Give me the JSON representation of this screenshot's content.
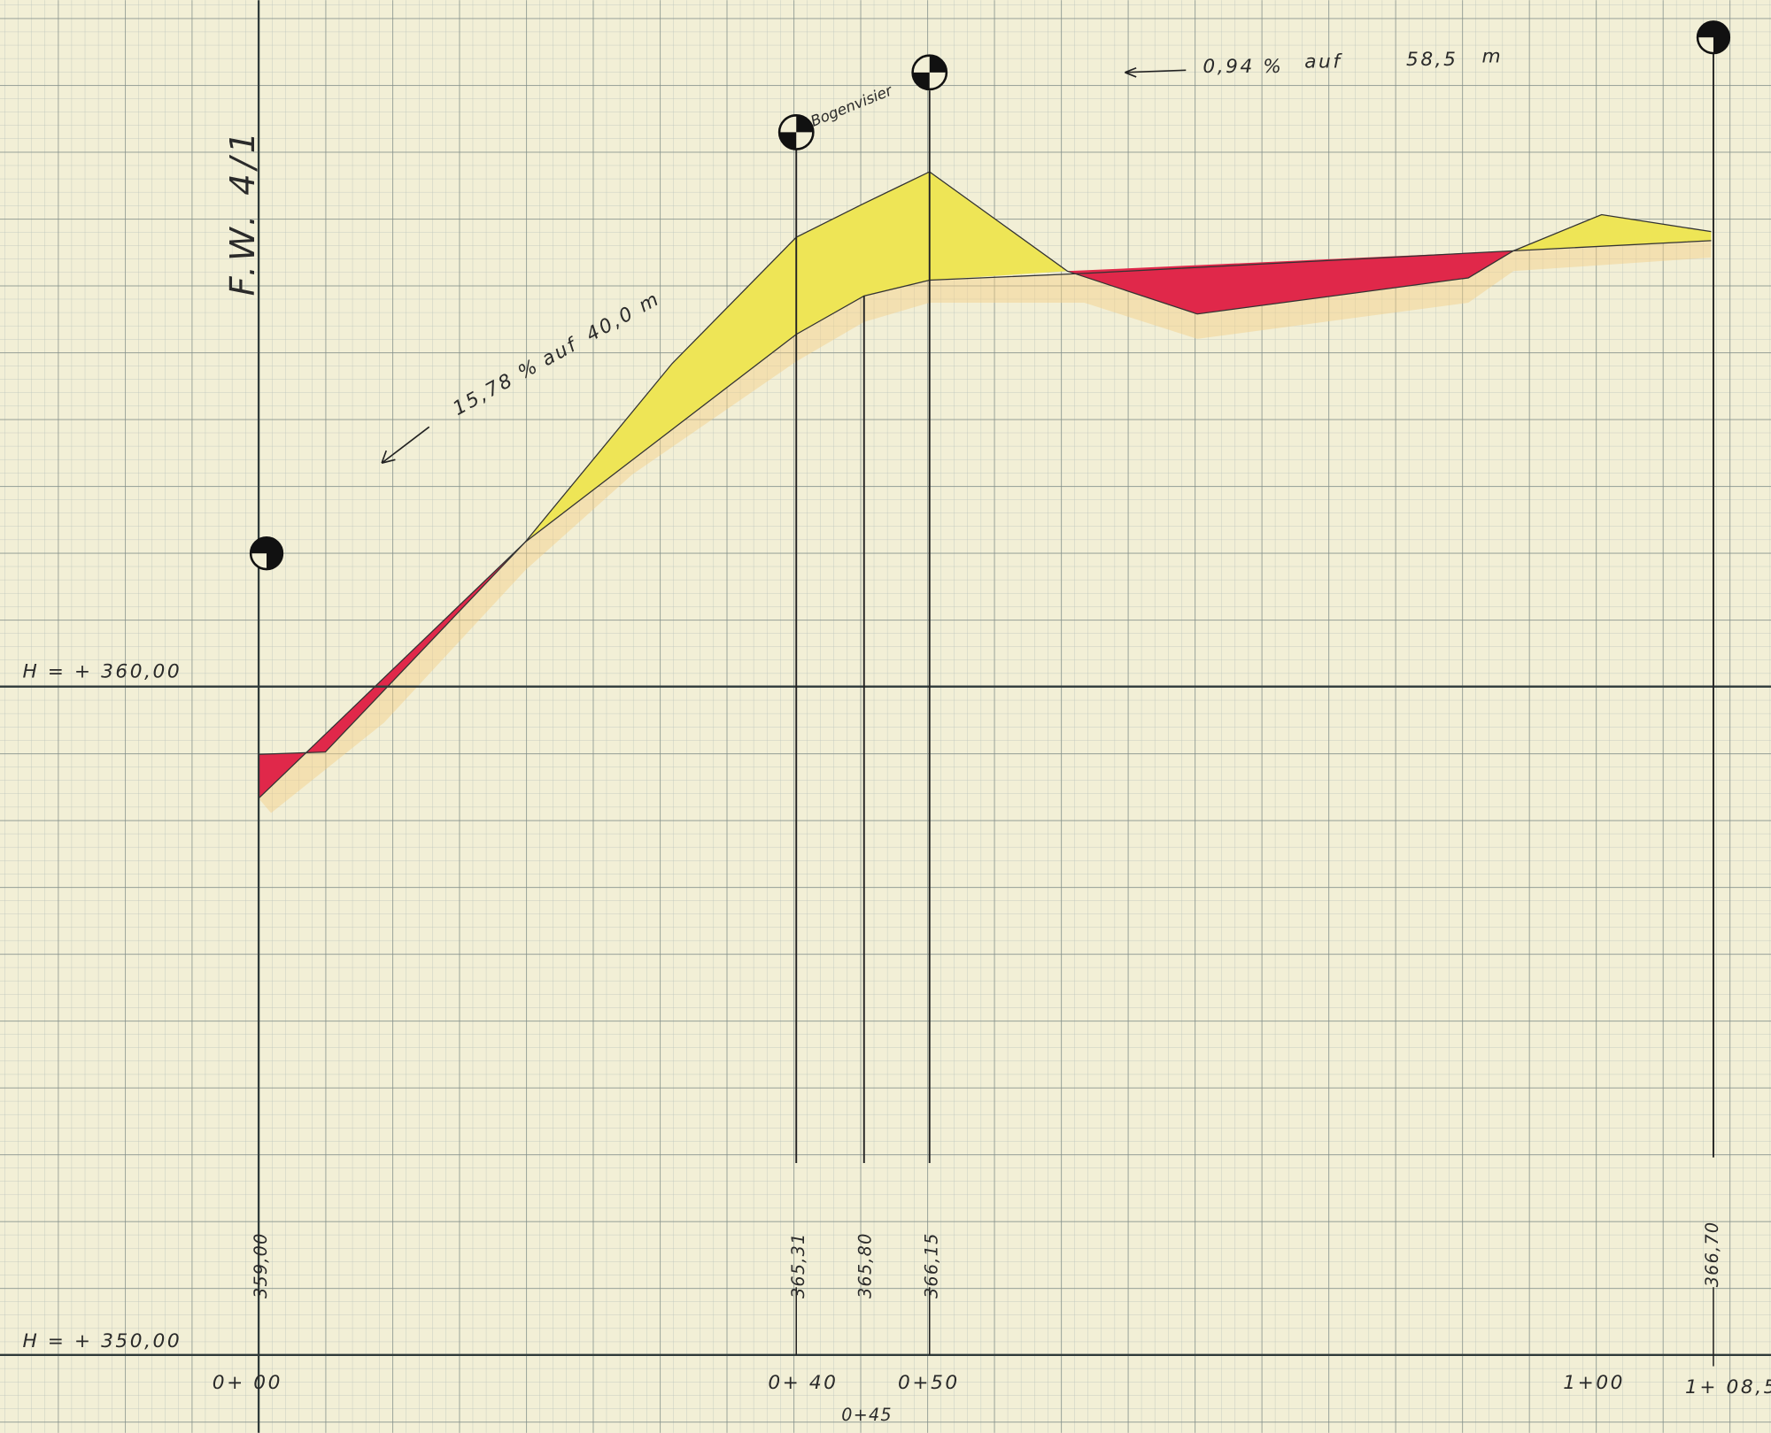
{
  "title": "F.W. 4/1",
  "annotations": {
    "sight_label": "Bogenvisier",
    "upper_gradient": {
      "percent": "0,94 %",
      "word": "auf",
      "length": "58,5",
      "unit": "m"
    },
    "lower_gradient": {
      "percent": "15,78 %",
      "word": "auf",
      "length": "40,0 m"
    }
  },
  "datum_lines": [
    "H = +  360,00",
    "H = +  350,00"
  ],
  "elevations": [
    "359,00",
    "365,31",
    "365,80",
    "366,15",
    "366,70"
  ],
  "stations": [
    "0+ 00",
    "0+ 40",
    "0+45",
    "0+50",
    "1+00",
    "1+ 08,5"
  ]
}
